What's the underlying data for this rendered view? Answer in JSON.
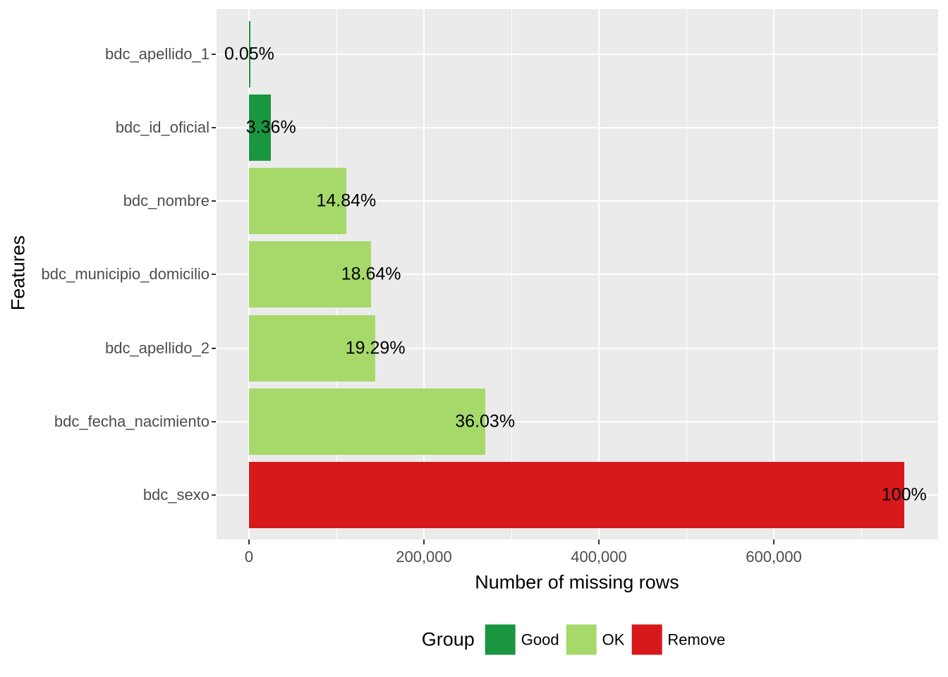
{
  "figure": {
    "x_axis_title": "Number of missing rows",
    "y_axis_title": "Features"
  },
  "legend": {
    "title": "Group",
    "entries": [
      {
        "label": "Good",
        "color": "#1a9641"
      },
      {
        "label": "OK",
        "color": "#a6d96a"
      },
      {
        "label": "Remove",
        "color": "#d7191c"
      }
    ]
  },
  "style": {
    "panel_background": "#ebebeb",
    "grid_color": "#ffffff",
    "axis_text_color": "#4d4d4d",
    "tick_mark_color": "#333333",
    "label_color": "#000000"
  },
  "chart_data": {
    "type": "bar",
    "orientation": "horizontal",
    "title": "",
    "xlabel": "Number of missing rows",
    "ylabel": "Features",
    "categories": [
      "bdc_apellido_1",
      "bdc_id_oficial",
      "bdc_nombre",
      "bdc_municipio_domicilio",
      "bdc_apellido_2",
      "bdc_fecha_nacimiento",
      "bdc_sexo"
    ],
    "series": [
      {
        "name": "Number of missing rows (estimated from axis)",
        "values": [
          375,
          25200,
          111200,
          139600,
          144500,
          269900,
          749000
        ]
      },
      {
        "name": "Percent missing",
        "values": [
          0.05,
          3.36,
          14.84,
          18.64,
          19.29,
          36.03,
          100
        ]
      }
    ],
    "bar_labels": [
      "0.05%",
      "3.36%",
      "14.84%",
      "18.64%",
      "19.29%",
      "36.03%",
      "100%"
    ],
    "bar_groups": [
      "Good",
      "Good",
      "OK",
      "OK",
      "OK",
      "OK",
      "Remove"
    ],
    "group_colors": {
      "Good": "#1a9641",
      "OK": "#a6d96a",
      "Remove": "#d7191c"
    },
    "x_ticks": {
      "values": [
        0,
        200000,
        400000,
        600000
      ],
      "labels": [
        "0",
        "200,000",
        "400,000",
        "600,000"
      ]
    },
    "x_minor_ticks": [
      100000,
      300000,
      500000,
      700000
    ],
    "xlim": [
      0,
      788000
    ],
    "grid": true,
    "legend_position": "bottom"
  }
}
